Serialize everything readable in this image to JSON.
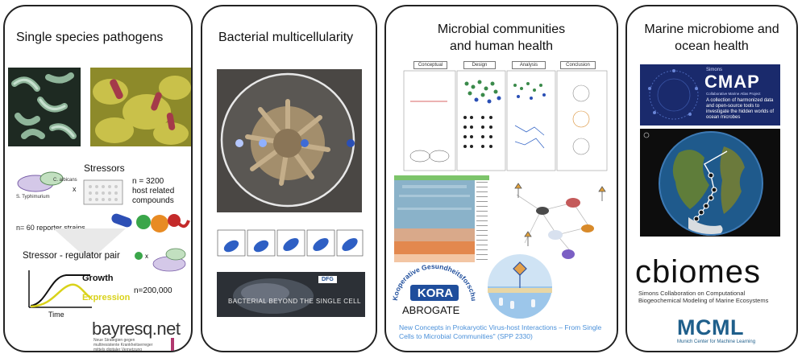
{
  "panels": [
    {
      "title": "Single species pathogens",
      "stressors_label": "Stressors",
      "cross_symbol": "x",
      "host_compounds": "n = 3200\nhost related\ncompounds",
      "organism_a": "S. Typhimurium",
      "organism_b": "C. albicans",
      "reporter_strains": "n= 60 reporter strains",
      "pair_label": "Stressor - regulator pair",
      "growth_label": "Growth",
      "expression_label": "Expression",
      "time_label": "Time",
      "n_total": "n=200,000",
      "logo_text": "bayresq.net",
      "logo_tagline": "Neue Strategien gegen\nmultiresistente Krankheitserreger\nmittels digitaler Vernetzung",
      "colors": {
        "growth": "#111111",
        "expression": "#d9d21a"
      }
    },
    {
      "title": "Bacterial multicellularity",
      "banner_text": "BACTERIAL BEYOND THE SINGLE CELL",
      "banner_logo": "DFG"
    },
    {
      "title": "Microbial communities\nand human health",
      "columns": [
        "Conceptual",
        "Design",
        "Analysis",
        "Conclusion"
      ],
      "kora_arc": "Kooperative Gesundheitsforschung in der Region Augsburg",
      "kora_label": "KORA",
      "abrogate_label": "ABROGATE",
      "spp_caption": "New Concepts in Prokaryotic Virus-host Interactions – From Single Cells to Microbial Communities\" (SPP 2330)",
      "colors": {
        "caption": "#4a90d9",
        "kora": "#1f4e9c"
      }
    },
    {
      "title": "Marine microbiome and\nocean health",
      "cmap_brand": "Simons",
      "cmap_title": "CMAP",
      "cmap_sub": "Collaborative Marine Atlas Project",
      "cmap_desc": "A collection of harmonized data and open-source tools to investigate the hidden worlds of ocean microbes",
      "cbiomes_logo": "cbiomes",
      "cbiomes_sub": "Simons Collaboration on Computational\nBiogeochemical Modeling of Marine Ecosystems",
      "mcml_logo": "MCML",
      "mcml_sub": "Munich Center for Machine Learning",
      "colors": {
        "mcml": "#1f5f8b",
        "cmap_bg": "#1a2a6c"
      }
    }
  ]
}
